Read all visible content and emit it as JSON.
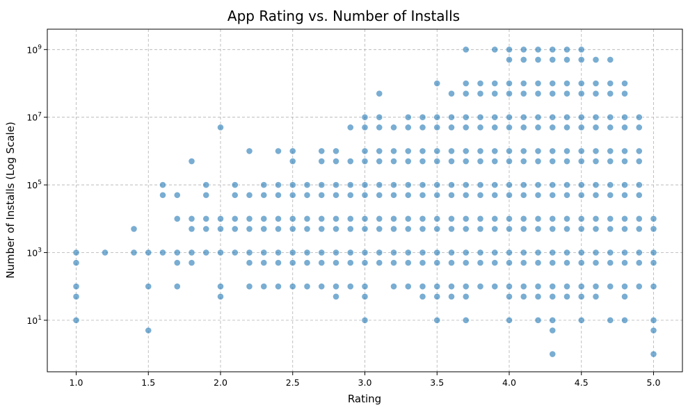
{
  "chart_data": {
    "type": "scatter",
    "title": "App Rating vs. Number of Installs",
    "xlabel": "Rating",
    "ylabel": "Number of Installs (Log Scale)",
    "xlim": [
      0.8,
      5.2
    ],
    "ylim": [
      0.3,
      4000000000
    ],
    "yscale": "log",
    "grid": true,
    "xticks": [
      1.0,
      1.5,
      2.0,
      2.5,
      3.0,
      3.5,
      4.0,
      4.5,
      5.0
    ],
    "xtick_labels": [
      "1.0",
      "1.5",
      "2.0",
      "2.5",
      "3.0",
      "3.5",
      "4.0",
      "4.5",
      "5.0"
    ],
    "yticks": [
      10,
      1000,
      100000,
      10000000,
      1000000000
    ],
    "ytick_labels": [
      {
        "base": "10",
        "exp": "1"
      },
      {
        "base": "10",
        "exp": "3"
      },
      {
        "base": "10",
        "exp": "5"
      },
      {
        "base": "10",
        "exp": "7"
      },
      {
        "base": "10",
        "exp": "9"
      }
    ],
    "marker_color": "#1f77b4",
    "marker_alpha": 0.6,
    "points": [
      [
        1.0,
        1000
      ],
      [
        1.0,
        500
      ],
      [
        1.0,
        100
      ],
      [
        1.0,
        50
      ],
      [
        1.0,
        10
      ],
      [
        1.2,
        1000
      ],
      [
        1.4,
        5000
      ],
      [
        1.4,
        1000
      ],
      [
        1.5,
        1000
      ],
      [
        1.5,
        100
      ],
      [
        1.5,
        5
      ],
      [
        1.6,
        100000
      ],
      [
        1.6,
        50000
      ],
      [
        1.6,
        1000
      ],
      [
        1.7,
        50000
      ],
      [
        1.7,
        10000
      ],
      [
        1.7,
        1000
      ],
      [
        1.7,
        500
      ],
      [
        1.7,
        100
      ],
      [
        1.8,
        500000
      ],
      [
        1.8,
        10000
      ],
      [
        1.8,
        5000
      ],
      [
        1.8,
        1000
      ],
      [
        1.8,
        500
      ],
      [
        1.9,
        100000
      ],
      [
        1.9,
        50000
      ],
      [
        1.9,
        10000
      ],
      [
        1.9,
        5000
      ],
      [
        1.9,
        1000
      ],
      [
        2.0,
        5000000
      ],
      [
        2.0,
        10000
      ],
      [
        2.0,
        5000
      ],
      [
        2.0,
        1000
      ],
      [
        2.0,
        100
      ],
      [
        2.0,
        50
      ],
      [
        2.1,
        100000
      ],
      [
        2.1,
        50000
      ],
      [
        2.1,
        10000
      ],
      [
        2.1,
        5000
      ],
      [
        2.1,
        1000
      ],
      [
        2.2,
        1000000
      ],
      [
        2.2,
        50000
      ],
      [
        2.2,
        10000
      ],
      [
        2.2,
        5000
      ],
      [
        2.2,
        1000
      ],
      [
        2.2,
        500
      ],
      [
        2.2,
        100
      ],
      [
        2.3,
        100000
      ],
      [
        2.3,
        50000
      ],
      [
        2.3,
        10000
      ],
      [
        2.3,
        5000
      ],
      [
        2.3,
        1000
      ],
      [
        2.3,
        500
      ],
      [
        2.3,
        100
      ],
      [
        2.4,
        1000000
      ],
      [
        2.4,
        100000
      ],
      [
        2.4,
        50000
      ],
      [
        2.4,
        10000
      ],
      [
        2.4,
        5000
      ],
      [
        2.4,
        1000
      ],
      [
        2.4,
        500
      ],
      [
        2.4,
        100
      ],
      [
        2.5,
        1000000
      ],
      [
        2.5,
        500000
      ],
      [
        2.5,
        100000
      ],
      [
        2.5,
        50000
      ],
      [
        2.5,
        10000
      ],
      [
        2.5,
        5000
      ],
      [
        2.5,
        1000
      ],
      [
        2.5,
        500
      ],
      [
        2.5,
        100
      ],
      [
        2.6,
        100000
      ],
      [
        2.6,
        50000
      ],
      [
        2.6,
        10000
      ],
      [
        2.6,
        5000
      ],
      [
        2.6,
        1000
      ],
      [
        2.6,
        500
      ],
      [
        2.6,
        100
      ],
      [
        2.7,
        1000000
      ],
      [
        2.7,
        500000
      ],
      [
        2.7,
        100000
      ],
      [
        2.7,
        50000
      ],
      [
        2.7,
        10000
      ],
      [
        2.7,
        5000
      ],
      [
        2.7,
        1000
      ],
      [
        2.7,
        500
      ],
      [
        2.7,
        100
      ],
      [
        2.8,
        1000000
      ],
      [
        2.8,
        500000
      ],
      [
        2.8,
        100000
      ],
      [
        2.8,
        50000
      ],
      [
        2.8,
        10000
      ],
      [
        2.8,
        5000
      ],
      [
        2.8,
        1000
      ],
      [
        2.8,
        500
      ],
      [
        2.8,
        100
      ],
      [
        2.8,
        50
      ],
      [
        2.9,
        5000000
      ],
      [
        2.9,
        500000
      ],
      [
        2.9,
        100000
      ],
      [
        2.9,
        50000
      ],
      [
        2.9,
        10000
      ],
      [
        2.9,
        5000
      ],
      [
        2.9,
        1000
      ],
      [
        2.9,
        500
      ],
      [
        2.9,
        100
      ],
      [
        3.0,
        10000000
      ],
      [
        3.0,
        5000000
      ],
      [
        3.0,
        1000000
      ],
      [
        3.0,
        500000
      ],
      [
        3.0,
        100000
      ],
      [
        3.0,
        50000
      ],
      [
        3.0,
        10000
      ],
      [
        3.0,
        5000
      ],
      [
        3.0,
        1000
      ],
      [
        3.0,
        500
      ],
      [
        3.0,
        100
      ],
      [
        3.0,
        50
      ],
      [
        3.0,
        10
      ],
      [
        3.1,
        50000000
      ],
      [
        3.1,
        10000000
      ],
      [
        3.1,
        5000000
      ],
      [
        3.1,
        1000000
      ],
      [
        3.1,
        500000
      ],
      [
        3.1,
        100000
      ],
      [
        3.1,
        50000
      ],
      [
        3.1,
        10000
      ],
      [
        3.1,
        5000
      ],
      [
        3.1,
        1000
      ],
      [
        3.1,
        500
      ],
      [
        3.2,
        5000000
      ],
      [
        3.2,
        1000000
      ],
      [
        3.2,
        500000
      ],
      [
        3.2,
        100000
      ],
      [
        3.2,
        50000
      ],
      [
        3.2,
        10000
      ],
      [
        3.2,
        5000
      ],
      [
        3.2,
        1000
      ],
      [
        3.2,
        500
      ],
      [
        3.2,
        100
      ],
      [
        3.3,
        10000000
      ],
      [
        3.3,
        5000000
      ],
      [
        3.3,
        1000000
      ],
      [
        3.3,
        500000
      ],
      [
        3.3,
        100000
      ],
      [
        3.3,
        50000
      ],
      [
        3.3,
        10000
      ],
      [
        3.3,
        5000
      ],
      [
        3.3,
        1000
      ],
      [
        3.3,
        500
      ],
      [
        3.3,
        100
      ],
      [
        3.4,
        10000000
      ],
      [
        3.4,
        5000000
      ],
      [
        3.4,
        1000000
      ],
      [
        3.4,
        500000
      ],
      [
        3.4,
        100000
      ],
      [
        3.4,
        50000
      ],
      [
        3.4,
        10000
      ],
      [
        3.4,
        5000
      ],
      [
        3.4,
        1000
      ],
      [
        3.4,
        500
      ],
      [
        3.4,
        100
      ],
      [
        3.4,
        50
      ],
      [
        3.5,
        100000000
      ],
      [
        3.5,
        10000000
      ],
      [
        3.5,
        5000000
      ],
      [
        3.5,
        1000000
      ],
      [
        3.5,
        500000
      ],
      [
        3.5,
        100000
      ],
      [
        3.5,
        50000
      ],
      [
        3.5,
        10000
      ],
      [
        3.5,
        5000
      ],
      [
        3.5,
        1000
      ],
      [
        3.5,
        500
      ],
      [
        3.5,
        100
      ],
      [
        3.5,
        50
      ],
      [
        3.5,
        10
      ],
      [
        3.6,
        50000000
      ],
      [
        3.6,
        10000000
      ],
      [
        3.6,
        5000000
      ],
      [
        3.6,
        1000000
      ],
      [
        3.6,
        500000
      ],
      [
        3.6,
        100000
      ],
      [
        3.6,
        50000
      ],
      [
        3.6,
        10000
      ],
      [
        3.6,
        5000
      ],
      [
        3.6,
        1000
      ],
      [
        3.6,
        500
      ],
      [
        3.6,
        100
      ],
      [
        3.6,
        50
      ],
      [
        3.7,
        1000000000
      ],
      [
        3.7,
        100000000
      ],
      [
        3.7,
        50000000
      ],
      [
        3.7,
        10000000
      ],
      [
        3.7,
        5000000
      ],
      [
        3.7,
        1000000
      ],
      [
        3.7,
        500000
      ],
      [
        3.7,
        100000
      ],
      [
        3.7,
        50000
      ],
      [
        3.7,
        10000
      ],
      [
        3.7,
        5000
      ],
      [
        3.7,
        1000
      ],
      [
        3.7,
        500
      ],
      [
        3.7,
        100
      ],
      [
        3.7,
        50
      ],
      [
        3.7,
        10
      ],
      [
        3.8,
        100000000
      ],
      [
        3.8,
        50000000
      ],
      [
        3.8,
        10000000
      ],
      [
        3.8,
        5000000
      ],
      [
        3.8,
        1000000
      ],
      [
        3.8,
        500000
      ],
      [
        3.8,
        100000
      ],
      [
        3.8,
        50000
      ],
      [
        3.8,
        10000
      ],
      [
        3.8,
        5000
      ],
      [
        3.8,
        1000
      ],
      [
        3.8,
        500
      ],
      [
        3.8,
        100
      ],
      [
        3.9,
        1000000000
      ],
      [
        3.9,
        100000000
      ],
      [
        3.9,
        50000000
      ],
      [
        3.9,
        10000000
      ],
      [
        3.9,
        5000000
      ],
      [
        3.9,
        1000000
      ],
      [
        3.9,
        500000
      ],
      [
        3.9,
        100000
      ],
      [
        3.9,
        50000
      ],
      [
        3.9,
        10000
      ],
      [
        3.9,
        5000
      ],
      [
        3.9,
        1000
      ],
      [
        3.9,
        500
      ],
      [
        3.9,
        100
      ],
      [
        4.0,
        1000000000
      ],
      [
        4.0,
        500000000
      ],
      [
        4.0,
        100000000
      ],
      [
        4.0,
        50000000
      ],
      [
        4.0,
        10000000
      ],
      [
        4.0,
        5000000
      ],
      [
        4.0,
        1000000
      ],
      [
        4.0,
        500000
      ],
      [
        4.0,
        100000
      ],
      [
        4.0,
        50000
      ],
      [
        4.0,
        10000
      ],
      [
        4.0,
        5000
      ],
      [
        4.0,
        1000
      ],
      [
        4.0,
        500
      ],
      [
        4.0,
        100
      ],
      [
        4.0,
        50
      ],
      [
        4.0,
        10
      ],
      [
        4.1,
        1000000000
      ],
      [
        4.1,
        500000000
      ],
      [
        4.1,
        100000000
      ],
      [
        4.1,
        50000000
      ],
      [
        4.1,
        10000000
      ],
      [
        4.1,
        5000000
      ],
      [
        4.1,
        1000000
      ],
      [
        4.1,
        500000
      ],
      [
        4.1,
        100000
      ],
      [
        4.1,
        50000
      ],
      [
        4.1,
        10000
      ],
      [
        4.1,
        5000
      ],
      [
        4.1,
        1000
      ],
      [
        4.1,
        500
      ],
      [
        4.1,
        100
      ],
      [
        4.1,
        50
      ],
      [
        4.2,
        1000000000
      ],
      [
        4.2,
        500000000
      ],
      [
        4.2,
        100000000
      ],
      [
        4.2,
        50000000
      ],
      [
        4.2,
        10000000
      ],
      [
        4.2,
        5000000
      ],
      [
        4.2,
        1000000
      ],
      [
        4.2,
        500000
      ],
      [
        4.2,
        100000
      ],
      [
        4.2,
        50000
      ],
      [
        4.2,
        10000
      ],
      [
        4.2,
        5000
      ],
      [
        4.2,
        1000
      ],
      [
        4.2,
        500
      ],
      [
        4.2,
        100
      ],
      [
        4.2,
        50
      ],
      [
        4.2,
        10
      ],
      [
        4.3,
        1000000000
      ],
      [
        4.3,
        500000000
      ],
      [
        4.3,
        100000000
      ],
      [
        4.3,
        50000000
      ],
      [
        4.3,
        10000000
      ],
      [
        4.3,
        5000000
      ],
      [
        4.3,
        1000000
      ],
      [
        4.3,
        500000
      ],
      [
        4.3,
        100000
      ],
      [
        4.3,
        50000
      ],
      [
        4.3,
        10000
      ],
      [
        4.3,
        5000
      ],
      [
        4.3,
        1000
      ],
      [
        4.3,
        500
      ],
      [
        4.3,
        100
      ],
      [
        4.3,
        50
      ],
      [
        4.3,
        10
      ],
      [
        4.3,
        5
      ],
      [
        4.3,
        1
      ],
      [
        4.4,
        1000000000
      ],
      [
        4.4,
        500000000
      ],
      [
        4.4,
        100000000
      ],
      [
        4.4,
        50000000
      ],
      [
        4.4,
        10000000
      ],
      [
        4.4,
        5000000
      ],
      [
        4.4,
        1000000
      ],
      [
        4.4,
        500000
      ],
      [
        4.4,
        100000
      ],
      [
        4.4,
        50000
      ],
      [
        4.4,
        10000
      ],
      [
        4.4,
        5000
      ],
      [
        4.4,
        1000
      ],
      [
        4.4,
        500
      ],
      [
        4.4,
        100
      ],
      [
        4.4,
        50
      ],
      [
        4.5,
        1000000000
      ],
      [
        4.5,
        500000000
      ],
      [
        4.5,
        100000000
      ],
      [
        4.5,
        50000000
      ],
      [
        4.5,
        10000000
      ],
      [
        4.5,
        5000000
      ],
      [
        4.5,
        1000000
      ],
      [
        4.5,
        500000
      ],
      [
        4.5,
        100000
      ],
      [
        4.5,
        50000
      ],
      [
        4.5,
        10000
      ],
      [
        4.5,
        5000
      ],
      [
        4.5,
        1000
      ],
      [
        4.5,
        500
      ],
      [
        4.5,
        100
      ],
      [
        4.5,
        50
      ],
      [
        4.5,
        10
      ],
      [
        4.6,
        500000000
      ],
      [
        4.6,
        100000000
      ],
      [
        4.6,
        50000000
      ],
      [
        4.6,
        10000000
      ],
      [
        4.6,
        5000000
      ],
      [
        4.6,
        1000000
      ],
      [
        4.6,
        500000
      ],
      [
        4.6,
        100000
      ],
      [
        4.6,
        50000
      ],
      [
        4.6,
        10000
      ],
      [
        4.6,
        5000
      ],
      [
        4.6,
        1000
      ],
      [
        4.6,
        500
      ],
      [
        4.6,
        100
      ],
      [
        4.6,
        50
      ],
      [
        4.7,
        500000000
      ],
      [
        4.7,
        100000000
      ],
      [
        4.7,
        50000000
      ],
      [
        4.7,
        10000000
      ],
      [
        4.7,
        5000000
      ],
      [
        4.7,
        1000000
      ],
      [
        4.7,
        500000
      ],
      [
        4.7,
        100000
      ],
      [
        4.7,
        50000
      ],
      [
        4.7,
        10000
      ],
      [
        4.7,
        5000
      ],
      [
        4.7,
        1000
      ],
      [
        4.7,
        500
      ],
      [
        4.7,
        100
      ],
      [
        4.7,
        10
      ],
      [
        4.8,
        100000000
      ],
      [
        4.8,
        50000000
      ],
      [
        4.8,
        10000000
      ],
      [
        4.8,
        5000000
      ],
      [
        4.8,
        1000000
      ],
      [
        4.8,
        500000
      ],
      [
        4.8,
        100000
      ],
      [
        4.8,
        50000
      ],
      [
        4.8,
        10000
      ],
      [
        4.8,
        5000
      ],
      [
        4.8,
        1000
      ],
      [
        4.8,
        500
      ],
      [
        4.8,
        100
      ],
      [
        4.8,
        50
      ],
      [
        4.8,
        10
      ],
      [
        4.9,
        10000000
      ],
      [
        4.9,
        5000000
      ],
      [
        4.9,
        1000000
      ],
      [
        4.9,
        500000
      ],
      [
        4.9,
        100000
      ],
      [
        4.9,
        50000
      ],
      [
        4.9,
        10000
      ],
      [
        4.9,
        5000
      ],
      [
        4.9,
        1000
      ],
      [
        4.9,
        500
      ],
      [
        4.9,
        100
      ],
      [
        5.0,
        10000
      ],
      [
        5.0,
        5000
      ],
      [
        5.0,
        1000
      ],
      [
        5.0,
        500
      ],
      [
        5.0,
        100
      ],
      [
        5.0,
        10
      ],
      [
        5.0,
        5
      ],
      [
        5.0,
        1
      ]
    ]
  }
}
